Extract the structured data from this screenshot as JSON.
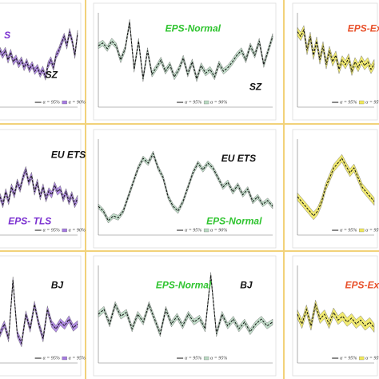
{
  "chart_data": [
    {
      "type": "line",
      "ylim": [
        0,
        10
      ],
      "annotations": [
        {
          "text": "S",
          "color": "#7a2fd0"
        },
        {
          "text": "SZ",
          "color": "#111111"
        }
      ],
      "series": [
        {
          "name": "α = 95%",
          "color": "#111111",
          "values": [
            6,
            5.5,
            6,
            5,
            5.8,
            4.8,
            5.2,
            4.5,
            5,
            4.2,
            4.8,
            4,
            4.5,
            3.8,
            4.2,
            3.5,
            4,
            3.2,
            4.5,
            5,
            4.2,
            5.5,
            6,
            6.8,
            7.5,
            6.5,
            8,
            7,
            5.5,
            7.8
          ]
        }
      ],
      "band": {
        "name": "α = 90%",
        "color": "#a57be0",
        "half_width": 0.35
      }
    },
    {
      "type": "line",
      "ylim": [
        0,
        10
      ],
      "annotations": [
        {
          "text": "EPS-Normal",
          "color": "#2fc42f"
        },
        {
          "text": "SZ",
          "color": "#111111"
        }
      ],
      "series": [
        {
          "name": "α = 95%",
          "color": "#111111",
          "values": [
            6.5,
            6.8,
            6.2,
            7,
            6.5,
            5,
            6.2,
            9,
            4,
            7,
            3,
            6,
            3.5,
            4.2,
            5,
            3.8,
            4.5,
            3.2,
            4,
            5.2,
            3.5,
            4.8,
            3,
            4.4,
            3.6,
            4,
            3.2,
            4.6,
            3.8,
            4.2,
            4.8,
            5.5,
            6,
            5,
            6.5,
            5.5,
            7,
            4.5,
            6,
            7.5
          ]
        }
      ],
      "band": {
        "name": "α = 90%",
        "color": "#b9d9c2",
        "half_width": 0.3
      }
    },
    {
      "type": "line",
      "ylim": [
        0,
        10
      ],
      "annotations": [
        {
          "text": "EPS-Ex",
          "color": "#e8502a"
        }
      ],
      "series": [
        {
          "name": "α = 95%",
          "color": "#111111",
          "values": [
            8,
            7.5,
            8.2,
            6,
            7.5,
            5.5,
            7,
            5,
            6.5,
            4.5,
            6,
            4.8,
            5.5,
            4,
            5,
            4.5,
            5.2,
            3.8,
            4.8,
            4.2,
            5,
            4.4,
            4.8,
            4,
            4.6
          ]
        }
      ],
      "band": {
        "name": "α = 95%",
        "color": "#f0e85a",
        "half_width": 0.45
      }
    },
    {
      "type": "line",
      "ylim": [
        0,
        10
      ],
      "annotations": [
        {
          "text": "EU ETS",
          "color": "#111111"
        },
        {
          "text": "EPS- TLS",
          "color": "#7a2fd0"
        }
      ],
      "series": [
        {
          "name": "α = 95%",
          "color": "#111111",
          "values": [
            4,
            3.2,
            4.5,
            3.5,
            5,
            4.2,
            5.5,
            4.8,
            6,
            6.8,
            5.5,
            6.2,
            4.5,
            5.5,
            4,
            5,
            3.8,
            4.6,
            4.2,
            5.2,
            4.5,
            4.8,
            3.8,
            4.5,
            3.5,
            4.2,
            3.2,
            3.8
          ]
        }
      ],
      "band": {
        "name": "α = 90%",
        "color": "#a57be0",
        "half_width": 0.35
      }
    },
    {
      "type": "line",
      "ylim": [
        0,
        10
      ],
      "annotations": [
        {
          "text": "EU ETS",
          "color": "#111111"
        },
        {
          "text": "EPS-Normal",
          "color": "#2fc42f"
        }
      ],
      "series": [
        {
          "name": "α = 95%",
          "color": "#111111",
          "values": [
            3,
            2.5,
            1.5,
            2,
            1.8,
            2.5,
            4,
            5.5,
            7,
            8,
            7.5,
            8.5,
            7,
            6,
            4,
            3,
            2.5,
            3.5,
            5,
            6.5,
            7.5,
            6.8,
            7.5,
            7,
            6,
            5,
            5.5,
            4.5,
            5.2,
            4.2,
            4.8,
            3.5,
            4,
            3.2,
            3.6,
            3
          ]
        }
      ],
      "band": {
        "name": "α = 90%",
        "color": "#b9d9c2",
        "half_width": 0.25
      }
    },
    {
      "type": "line",
      "ylim": [
        0,
        10
      ],
      "annotations": [],
      "series": [
        {
          "name": "α = 95%",
          "color": "#111111",
          "values": [
            4,
            3.5,
            3,
            2.5,
            2,
            2.5,
            3.5,
            5,
            6,
            7,
            7.5,
            8,
            7.2,
            6.5,
            7,
            6,
            5,
            4.5,
            4,
            3.5
          ]
        }
      ],
      "band": {
        "name": "α = 95%",
        "color": "#f0e85a",
        "half_width": 0.4
      }
    },
    {
      "type": "line",
      "ylim": [
        0,
        10
      ],
      "annotations": [
        {
          "text": "BJ",
          "color": "#111111"
        }
      ],
      "series": [
        {
          "name": "α = 95%",
          "color": "#111111",
          "values": [
            3,
            4,
            2.5,
            8.5,
            3,
            2,
            5,
            3.5,
            6,
            4,
            2.5,
            5.5,
            4,
            3.5,
            4.2,
            3.8,
            4.5,
            3.6,
            4
          ]
        }
      ],
      "band": {
        "name": "α = 95%",
        "color": "#a57be0",
        "half_width": 0.35
      }
    },
    {
      "type": "line",
      "ylim": [
        0,
        10
      ],
      "annotations": [
        {
          "text": "EPS-Normal",
          "color": "#2fc42f"
        },
        {
          "text": "BJ",
          "color": "#111111"
        }
      ],
      "series": [
        {
          "name": "α = 95%",
          "color": "#111111",
          "values": [
            5,
            5.5,
            4,
            6,
            4.8,
            5.2,
            3.5,
            5,
            4.2,
            6,
            4.5,
            3,
            5.5,
            4,
            4.8,
            3.8,
            5,
            4.2,
            4.6,
            3.5,
            9,
            3,
            5,
            3.8,
            4.5,
            3.5,
            4.2,
            3.2,
            4,
            4.5,
            3.8,
            4.2
          ]
        }
      ],
      "band": {
        "name": "α = 95%",
        "color": "#b9d9c2",
        "half_width": 0.3
      }
    },
    {
      "type": "line",
      "ylim": [
        0,
        10
      ],
      "annotations": [
        {
          "text": "EPS-Extre",
          "color": "#e8502a"
        }
      ],
      "series": [
        {
          "name": "α = 95%",
          "color": "#111111",
          "values": [
            5,
            4,
            5.5,
            3.8,
            6,
            4.5,
            5,
            4,
            5.2,
            4.4,
            4.8,
            4.2,
            4.6,
            4,
            4.4,
            3.8,
            4.2,
            3.6
          ]
        }
      ],
      "band": {
        "name": "α = 95%",
        "color": "#f0e85a",
        "half_width": 0.45
      }
    }
  ]
}
